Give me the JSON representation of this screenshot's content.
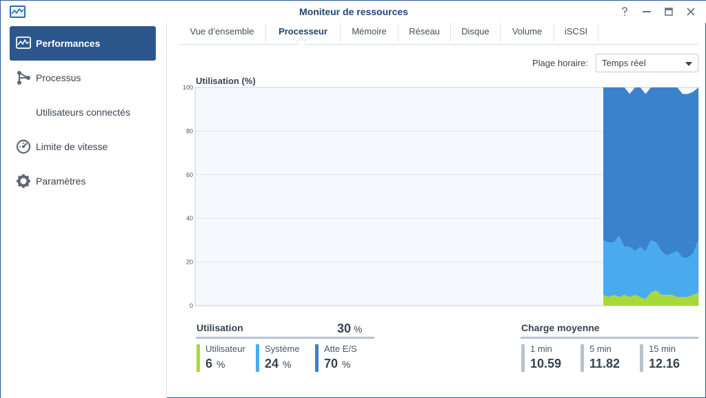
{
  "window": {
    "title": "Moniteur de ressources",
    "buttons": [
      "help",
      "minimize",
      "maximize",
      "close"
    ]
  },
  "sidebar": {
    "items": [
      {
        "label": "Performances",
        "icon": "performance-icon",
        "active": true
      },
      {
        "label": "Processus",
        "icon": "process-icon"
      },
      {
        "label": "Utilisateurs connectés",
        "icon": ""
      },
      {
        "label": "Limite de vitesse",
        "icon": "speed-limit-icon"
      },
      {
        "label": "Paramètres",
        "icon": "gear-icon"
      }
    ]
  },
  "tabs": [
    {
      "label": "Vue d’ensemble"
    },
    {
      "label": "Processeur",
      "active": true
    },
    {
      "label": "Mémoire"
    },
    {
      "label": "Réseau"
    },
    {
      "label": "Disque"
    },
    {
      "label": "Volume"
    },
    {
      "label": "iSCSI"
    }
  ],
  "range": {
    "label": "Plage horaire:",
    "value": "Temps réel"
  },
  "colors": {
    "user": "#a8d93a",
    "system": "#4aaaf0",
    "io": "#3a82cc",
    "accent": "#2c578c"
  },
  "chart_data": {
    "type": "area",
    "title": "Utilisation (%)",
    "ylim": [
      0,
      100
    ],
    "yticks": [
      "0",
      "20",
      "40",
      "60",
      "80",
      "100"
    ],
    "grid": true,
    "series": [
      {
        "key": "user",
        "values": [
          5,
          4,
          5,
          4,
          5,
          4,
          5,
          4,
          3,
          6,
          7,
          5,
          5,
          5,
          4,
          4,
          4,
          5,
          6
        ]
      },
      {
        "key": "system",
        "values": [
          25,
          25,
          24,
          28,
          22,
          23,
          20,
          23,
          22,
          24,
          22,
          20,
          18,
          19,
          21,
          18,
          18,
          19,
          24
        ]
      },
      {
        "key": "io",
        "values": [
          70,
          71,
          71,
          68,
          73,
          70,
          75,
          73,
          72,
          70,
          71,
          75,
          77,
          76,
          75,
          75,
          75,
          74,
          70
        ]
      }
    ]
  },
  "utilization": {
    "title": "Utilisation",
    "total": "30",
    "unit": "%",
    "items": [
      {
        "label": "Utilisateur",
        "value": "6",
        "unit": "%"
      },
      {
        "label": "Système",
        "value": "24",
        "unit": "%"
      },
      {
        "label": "Atte E/S",
        "value": "70",
        "unit": "%"
      }
    ]
  },
  "load": {
    "title": "Charge moyenne",
    "items": [
      {
        "label": "1 min",
        "value": "10.59"
      },
      {
        "label": "5 min",
        "value": "11.82"
      },
      {
        "label": "15 min",
        "value": "12.16"
      }
    ]
  }
}
